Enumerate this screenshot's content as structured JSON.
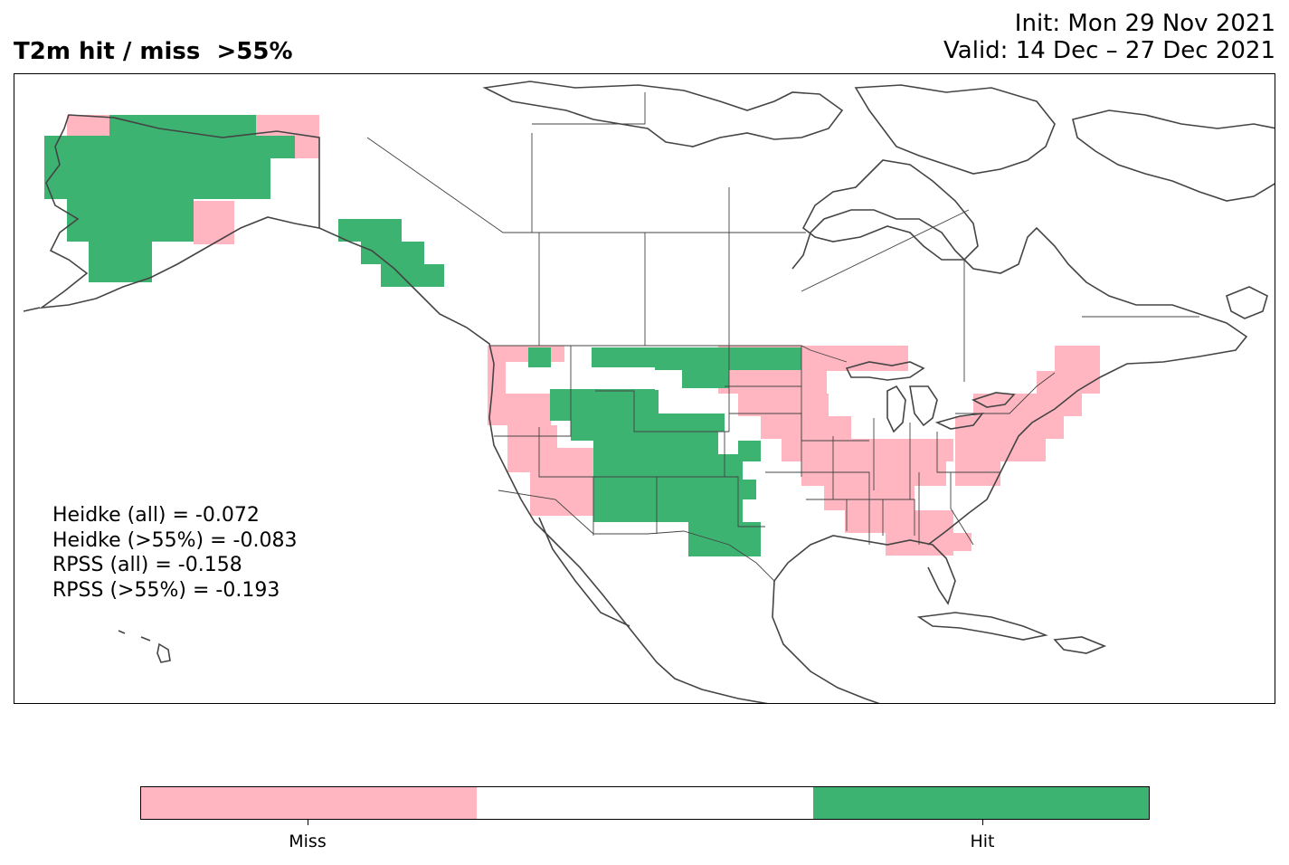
{
  "title": {
    "left": "T2m hit / miss  >55%",
    "init": "Init: Mon 29 Nov 2021",
    "valid": "Valid: 14 Dec – 27 Dec 2021"
  },
  "scores": [
    "Heidke (all) = -0.072",
    "Heidke (>55%) = -0.083",
    "RPSS (all) = -0.158",
    "RPSS (>55%) = -0.193"
  ],
  "legend": {
    "categories": [
      "Miss",
      "",
      "Hit"
    ],
    "colors": {
      "miss": "#ffb6c1",
      "neutral": "#ffffff",
      "hit": "#3cb371"
    }
  }
}
